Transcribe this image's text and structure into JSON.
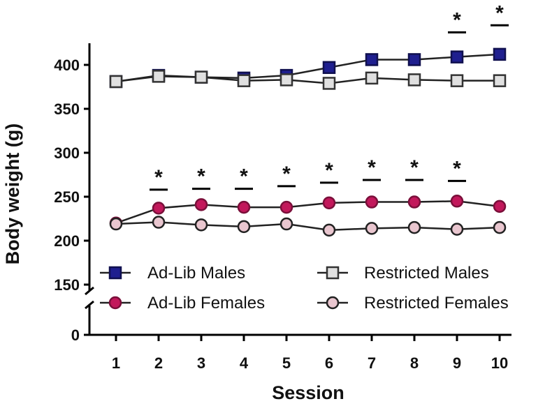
{
  "chart_data": {
    "type": "line",
    "xlabel": "Session",
    "ylabel": "Body weight (g)",
    "x": [
      1,
      2,
      3,
      4,
      5,
      6,
      7,
      8,
      9,
      10
    ],
    "x_tick_labels": [
      "1",
      "2",
      "3",
      "4",
      "5",
      "6",
      "7",
      "8",
      "9",
      "10"
    ],
    "y_axis_break": [
      0,
      150
    ],
    "y_tick_labels": [
      "0",
      "150",
      "200",
      "250",
      "300",
      "350",
      "400"
    ],
    "y_tick_values": [
      0,
      150,
      200,
      250,
      300,
      350,
      400
    ],
    "series": [
      {
        "name": "Ad-Lib Males",
        "marker": "square",
        "fill": "#1f1f8f",
        "stroke": "#10104f",
        "values": [
          381,
          388,
          386,
          385,
          388,
          397,
          406,
          406,
          409,
          412
        ]
      },
      {
        "name": "Restricted Males",
        "marker": "square-open",
        "fill": "#e0e0e0",
        "stroke": "#333333",
        "values": [
          381,
          387,
          386,
          382,
          383,
          379,
          385,
          383,
          382,
          382
        ]
      },
      {
        "name": "Ad-Lib Females",
        "marker": "circle",
        "fill": "#c2185b",
        "stroke": "#7a0f3a",
        "values": [
          220,
          237,
          241,
          238,
          238,
          243,
          244,
          244,
          245,
          239
        ]
      },
      {
        "name": "Restricted Females",
        "marker": "circle-open",
        "fill": "#e9c6cf",
        "stroke": "#222222",
        "values": [
          219,
          221,
          218,
          216,
          219,
          212,
          214,
          215,
          213,
          215
        ]
      }
    ],
    "significance": [
      {
        "session": 2,
        "value": 258,
        "label": "*"
      },
      {
        "session": 3,
        "value": 259,
        "label": "*"
      },
      {
        "session": 4,
        "value": 259,
        "label": "*"
      },
      {
        "session": 5,
        "value": 262,
        "label": "*"
      },
      {
        "session": 6,
        "value": 266,
        "label": "*"
      },
      {
        "session": 7,
        "value": 269,
        "label": "*"
      },
      {
        "session": 8,
        "value": 269,
        "label": "*"
      },
      {
        "session": 9,
        "value": 268,
        "label": "*"
      },
      {
        "session": 9,
        "value": 437,
        "label": "*"
      },
      {
        "session": 10,
        "value": 445,
        "label": "*"
      }
    ],
    "legend": {
      "placement": "bottom-left",
      "entries": [
        "Ad-Lib Males",
        "Restricted Males",
        "Ad-Lib Females",
        "Restricted Females"
      ]
    }
  }
}
